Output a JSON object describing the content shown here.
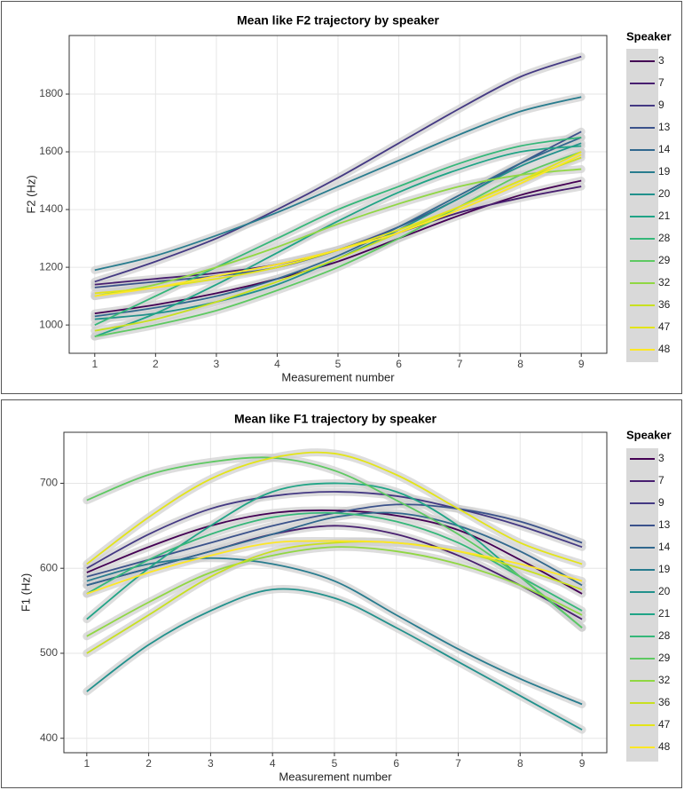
{
  "chart_data": [
    {
      "type": "line",
      "title": "Mean like F2 trajectory by speaker",
      "x_label": "Measurement number",
      "y_label": "F2 (Hz)",
      "legend_title": "Speaker",
      "x": [
        1,
        2,
        3,
        4,
        5,
        6,
        7,
        8,
        9
      ],
      "xlim": [
        0.58,
        9.42
      ],
      "xticks": [
        1,
        2,
        3,
        4,
        5,
        6,
        7,
        8,
        9
      ],
      "ylim": [
        902,
        2003
      ],
      "yticks": [
        1000,
        1200,
        1400,
        1600,
        1800
      ],
      "grid": true,
      "series": [
        {
          "name": "3",
          "color": "#440154",
          "values": [
            1040,
            1070,
            1110,
            1160,
            1220,
            1300,
            1380,
            1450,
            1500
          ]
        },
        {
          "name": "7",
          "color": "#481f70",
          "values": [
            1140,
            1160,
            1180,
            1210,
            1260,
            1320,
            1390,
            1440,
            1480
          ]
        },
        {
          "name": "9",
          "color": "#443983",
          "values": [
            1150,
            1220,
            1300,
            1400,
            1510,
            1630,
            1750,
            1860,
            1930
          ]
        },
        {
          "name": "13",
          "color": "#3b528b",
          "values": [
            1130,
            1150,
            1170,
            1200,
            1260,
            1340,
            1440,
            1560,
            1670
          ]
        },
        {
          "name": "14",
          "color": "#31688e",
          "values": [
            1030,
            1060,
            1100,
            1160,
            1240,
            1340,
            1450,
            1560,
            1650
          ]
        },
        {
          "name": "19",
          "color": "#287c8e",
          "values": [
            1190,
            1240,
            1310,
            1390,
            1480,
            1570,
            1660,
            1740,
            1790
          ]
        },
        {
          "name": "20",
          "color": "#21918c",
          "values": [
            1020,
            1040,
            1080,
            1140,
            1230,
            1330,
            1440,
            1550,
            1630
          ]
        },
        {
          "name": "21",
          "color": "#20a486",
          "values": [
            960,
            1040,
            1140,
            1250,
            1360,
            1460,
            1540,
            1600,
            1620
          ]
        },
        {
          "name": "28",
          "color": "#35b779",
          "values": [
            1000,
            1100,
            1200,
            1300,
            1400,
            1480,
            1560,
            1620,
            1650
          ]
        },
        {
          "name": "29",
          "color": "#5ec962",
          "values": [
            960,
            1000,
            1050,
            1120,
            1200,
            1300,
            1410,
            1520,
            1600
          ]
        },
        {
          "name": "32",
          "color": "#90d743",
          "values": [
            1100,
            1140,
            1200,
            1270,
            1350,
            1420,
            1480,
            1520,
            1540
          ]
        },
        {
          "name": "36",
          "color": "#c8e020",
          "values": [
            980,
            1020,
            1080,
            1150,
            1230,
            1320,
            1410,
            1500,
            1580
          ]
        },
        {
          "name": "47",
          "color": "#e3e418",
          "values": [
            1110,
            1130,
            1160,
            1200,
            1260,
            1330,
            1410,
            1500,
            1600
          ]
        },
        {
          "name": "48",
          "color": "#fde725",
          "values": [
            1100,
            1130,
            1170,
            1210,
            1260,
            1320,
            1400,
            1490,
            1590
          ]
        }
      ]
    },
    {
      "type": "line",
      "title": "Mean like F1 trajectory by speaker",
      "x_label": "Measurement number",
      "y_label": "F1 (Hz)",
      "legend_title": "Speaker",
      "x": [
        1,
        2,
        3,
        4,
        5,
        6,
        7,
        8,
        9
      ],
      "xlim": [
        0.63,
        9.4
      ],
      "xticks": [
        1,
        2,
        3,
        4,
        5,
        6,
        7,
        8,
        9
      ],
      "ylim": [
        383,
        760
      ],
      "yticks": [
        400,
        500,
        600,
        700
      ],
      "grid": true,
      "series": [
        {
          "name": "3",
          "color": "#440154",
          "values": [
            595,
            625,
            650,
            665,
            668,
            662,
            645,
            610,
            570
          ]
        },
        {
          "name": "7",
          "color": "#481f70",
          "values": [
            580,
            600,
            620,
            640,
            650,
            640,
            615,
            580,
            540
          ]
        },
        {
          "name": "9",
          "color": "#443983",
          "values": [
            600,
            640,
            670,
            685,
            690,
            685,
            670,
            650,
            625
          ]
        },
        {
          "name": "13",
          "color": "#3b528b",
          "values": [
            590,
            610,
            630,
            650,
            665,
            675,
            670,
            655,
            630
          ]
        },
        {
          "name": "14",
          "color": "#31688e",
          "values": [
            580,
            600,
            620,
            640,
            660,
            665,
            650,
            620,
            580
          ]
        },
        {
          "name": "19",
          "color": "#287c8e",
          "values": [
            585,
            605,
            612,
            605,
            585,
            545,
            505,
            470,
            440
          ]
        },
        {
          "name": "20",
          "color": "#21918c",
          "values": [
            455,
            510,
            550,
            575,
            565,
            530,
            490,
            450,
            410
          ]
        },
        {
          "name": "21",
          "color": "#20a486",
          "values": [
            540,
            600,
            650,
            690,
            700,
            690,
            650,
            590,
            530
          ]
        },
        {
          "name": "28",
          "color": "#35b779",
          "values": [
            570,
            610,
            640,
            660,
            665,
            655,
            630,
            590,
            550
          ]
        },
        {
          "name": "29",
          "color": "#5ec962",
          "values": [
            680,
            710,
            725,
            730,
            715,
            680,
            640,
            590,
            530
          ]
        },
        {
          "name": "32",
          "color": "#90d743",
          "values": [
            520,
            560,
            595,
            615,
            625,
            620,
            605,
            580,
            545
          ]
        },
        {
          "name": "36",
          "color": "#c8e020",
          "values": [
            500,
            545,
            590,
            620,
            630,
            630,
            620,
            600,
            575
          ]
        },
        {
          "name": "47",
          "color": "#e3e418",
          "values": [
            605,
            660,
            705,
            730,
            735,
            710,
            670,
            630,
            605
          ]
        },
        {
          "name": "48",
          "color": "#fde725",
          "values": [
            570,
            595,
            615,
            630,
            632,
            630,
            620,
            605,
            585
          ]
        }
      ]
    }
  ]
}
